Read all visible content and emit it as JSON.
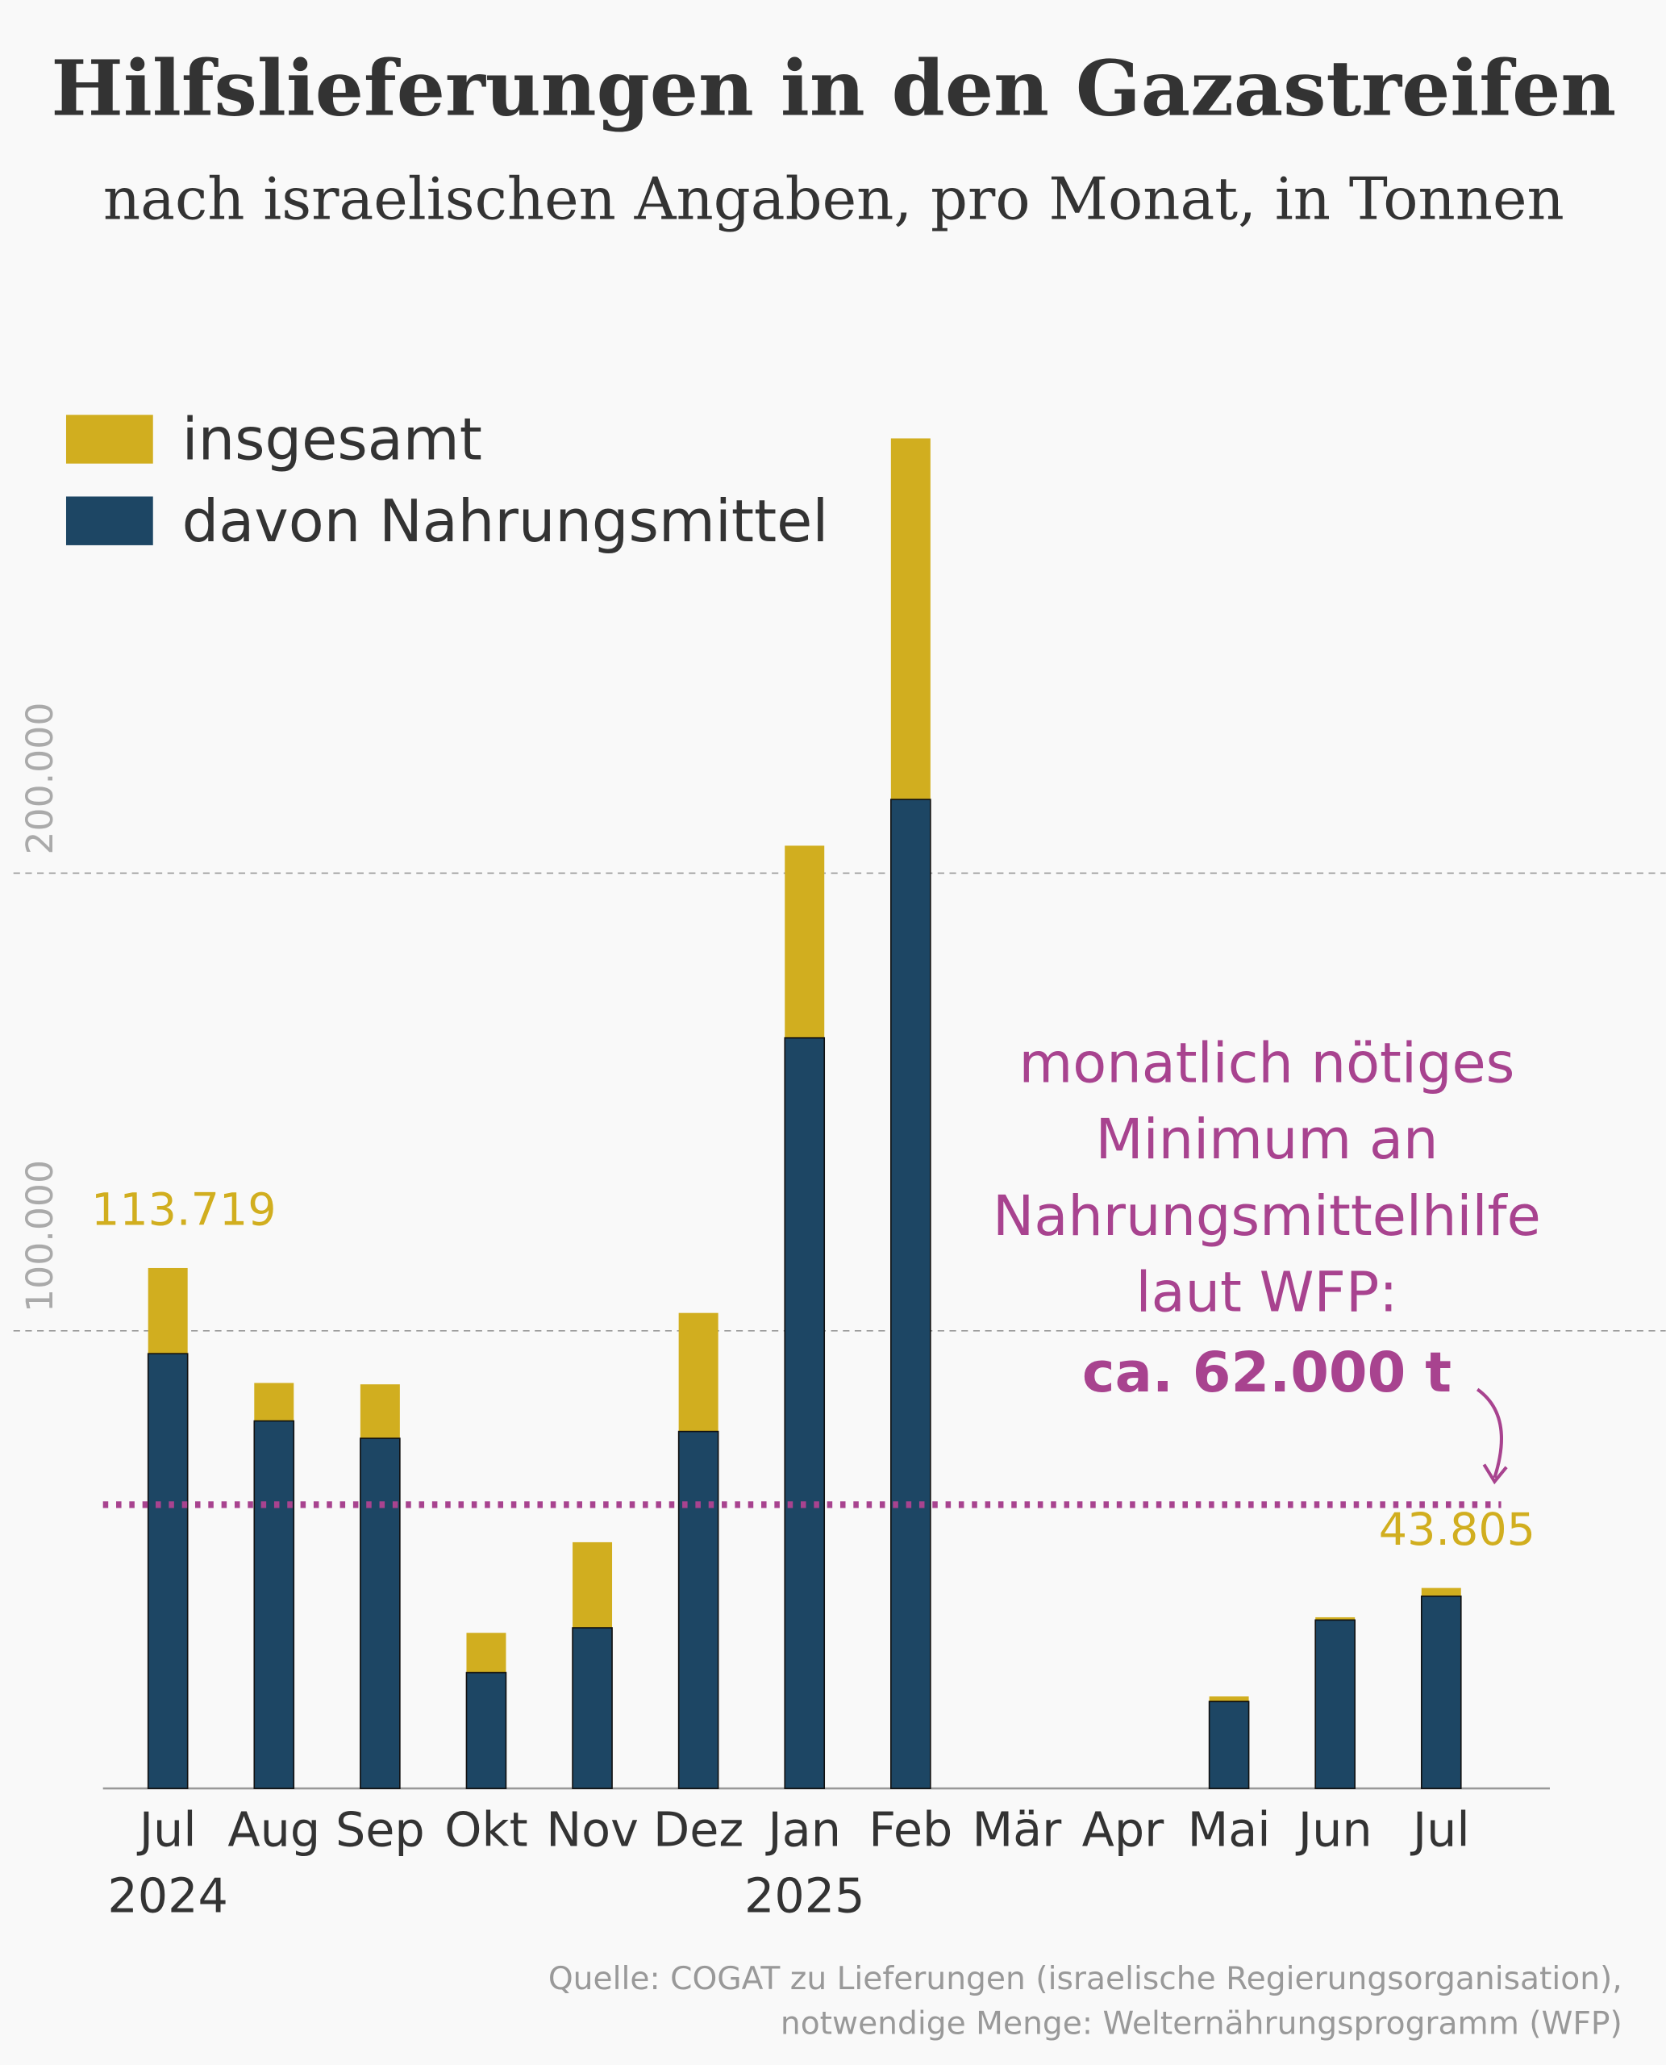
{
  "chart_data": {
    "type": "bar",
    "title": "Hilfslieferungen in den Gazastreifen",
    "subtitle": "nach israelischen Angaben, pro Monat, in Tonnen",
    "categories": [
      "Jul",
      "Aug",
      "Sep",
      "Okt",
      "Nov",
      "Dez",
      "Jan",
      "Feb",
      "Mär",
      "Apr",
      "Mai",
      "Jun",
      "Jul"
    ],
    "year_row": [
      "2024",
      null,
      null,
      null,
      null,
      null,
      "2025",
      null,
      null,
      null,
      null,
      null,
      null
    ],
    "series": [
      {
        "name": "insgesamt",
        "color": "#d1ae1f",
        "values": [
          113719,
          88600,
          88300,
          34000,
          53800,
          103900,
          206000,
          295000,
          null,
          null,
          20100,
          37400,
          43805
        ],
        "value_labels": [
          "113.719",
          null,
          null,
          null,
          null,
          null,
          null,
          null,
          null,
          null,
          null,
          null,
          "43.805"
        ]
      },
      {
        "name": "davon Nahrungsmittel",
        "color": "#1d4664",
        "values": [
          95000,
          80300,
          76500,
          25300,
          35100,
          78000,
          164000,
          216100,
          null,
          null,
          19000,
          36800,
          42000
        ]
      }
    ],
    "ylim": [
      0,
      300000
    ],
    "yticks": [
      {
        "value": 100000,
        "label": "100.000"
      },
      {
        "value": 200000,
        "label": "200.000"
      }
    ],
    "grid": true,
    "legend": "top-left",
    "reference_line": {
      "value": 62000,
      "color": "#a8438f",
      "text": [
        "monatlich nötiges",
        "Minimum an",
        "Nahrungsmittelhilfe",
        "laut WFP:"
      ],
      "label": "ca. 62.000 t"
    },
    "source": [
      "Quelle: COGAT zu Lieferungen (israelische Regierungsorganisation),",
      "notwendige Menge: Welternährungsprogramm (WFP)"
    ]
  }
}
